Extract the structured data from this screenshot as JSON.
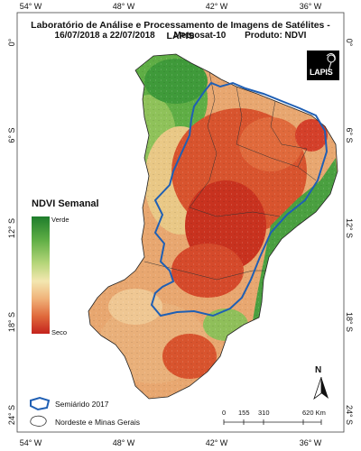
{
  "header": {
    "institution": "Laboratório de Análise e Processamento de Imagens de Satélites - LAPIS",
    "period": "16/07/2018 a 22/07/2018",
    "satellite": "Meteosat-10",
    "product": "Produto: NDVI"
  },
  "logo": {
    "text": "LAPIS"
  },
  "axes": {
    "longitude_top": [
      "54° W",
      "48° W",
      "42° W",
      "36° W"
    ],
    "longitude_bottom": [
      "54° W",
      "48° W",
      "42° W",
      "36° W"
    ],
    "latitude_left": [
      "0°",
      "6° S",
      "12° S",
      "18° S",
      "24° S"
    ],
    "latitude_right": [
      "0°",
      "6° S",
      "12° S",
      "18° S",
      "24° S"
    ]
  },
  "ndvi_legend": {
    "title": "NDVI Semanal",
    "high_label": "Verde",
    "low_label": "Seco",
    "colors": [
      "#1e7d2c",
      "#5fae45",
      "#b6d67a",
      "#f3e7b0",
      "#f0b37a",
      "#e06a3c",
      "#c4231d"
    ]
  },
  "scale_bar": {
    "ticks": [
      "0",
      "155",
      "310",
      "620 Km"
    ]
  },
  "north_arrow": {
    "label": "N"
  },
  "map_legend": {
    "semiarid_label": "Semiárido 2017",
    "semiarid_color": "#1f5fb4",
    "region_label": "Nordeste e Minas Gerais"
  }
}
